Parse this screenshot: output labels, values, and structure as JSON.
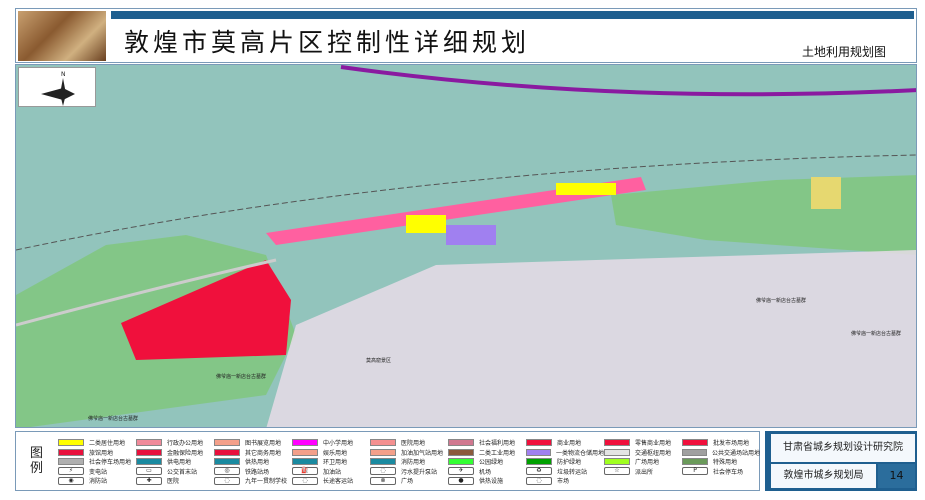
{
  "header": {
    "title": "敦煌市莫高片区控制性详细规划",
    "subtitle": "土地利用规划图"
  },
  "map": {
    "labels": {
      "scenic": "莫高窟景区",
      "tombs1": "佛爷庙一新店台古墓群",
      "tombs2": "佛爷庙一新店台古墓群",
      "tombs3": "佛爷庙一新店台古墓群",
      "tombs4": "佛爷庙一新店台古墓群"
    },
    "north": "N"
  },
  "legend": {
    "title": "图例",
    "items": [
      {
        "label": "二类居住用地",
        "color": "#ffff00"
      },
      {
        "label": "行政办公用地",
        "color": "#f08a9a"
      },
      {
        "label": "图书展览用地",
        "color": "#f4a08a"
      },
      {
        "label": "中小学用地",
        "color": "#ff00ff"
      },
      {
        "label": "医院用地",
        "color": "#f49090"
      },
      {
        "label": "社会福利用地",
        "color": "#d07890"
      },
      {
        "label": "商业用地",
        "color": "#f0103c"
      },
      {
        "label": "零售商业用地",
        "color": "#f0103c"
      },
      {
        "label": "批发市场用地",
        "color": "#f0103c"
      },
      {
        "label": "旅馆用地",
        "color": "#e8103c"
      },
      {
        "label": "金融保险用地",
        "color": "#e8103c"
      },
      {
        "label": "其它商务用地",
        "color": "#e8103c"
      },
      {
        "label": "娱乐用地",
        "color": "#f4a08a"
      },
      {
        "label": "加油加气站用地",
        "color": "#f4a08a"
      },
      {
        "label": "二类工业用地",
        "color": "#8b5a3c"
      },
      {
        "label": "一类物流仓储用地",
        "color": "#a080f0"
      },
      {
        "label": "交通枢纽用地",
        "color": "#e4e4e4"
      },
      {
        "label": "公共交通场站用地",
        "color": "#a0a0a0"
      },
      {
        "label": "社会停车场用地",
        "color": "#b0b0b0"
      },
      {
        "label": "供电用地",
        "color": "#1a8aa0"
      },
      {
        "label": "供热用地",
        "color": "#1a8aa0"
      },
      {
        "label": "环卫用地",
        "color": "#1a8aa0"
      },
      {
        "label": "消防用地",
        "color": "#1a8aa0"
      },
      {
        "label": "公园绿地",
        "color": "#33ff33"
      },
      {
        "label": "防护绿地",
        "color": "#00a000"
      },
      {
        "label": "广场用地",
        "color": "#a0ff20"
      },
      {
        "label": "特殊用地",
        "color": "#6a9a5a"
      }
    ],
    "symbols": [
      {
        "label": "变电站",
        "glyph": "⚡"
      },
      {
        "label": "公交首末站",
        "glyph": "▭"
      },
      {
        "label": "铁路站场",
        "glyph": "◎"
      },
      {
        "label": "加油站",
        "glyph": "⛽"
      },
      {
        "label": "污水提升泵站",
        "glyph": "◌"
      },
      {
        "label": "机场",
        "glyph": "✈"
      },
      {
        "label": "垃圾转运站",
        "glyph": "♻"
      },
      {
        "label": "派出所",
        "glyph": "☆"
      },
      {
        "label": "社会停车场",
        "glyph": "P"
      },
      {
        "label": "消防站",
        "glyph": "◉"
      },
      {
        "label": "医院",
        "glyph": "✚"
      },
      {
        "label": "九年一贯制学校",
        "glyph": "◌"
      },
      {
        "label": "长途客运站",
        "glyph": "◌"
      },
      {
        "label": "广场",
        "glyph": "⊗"
      },
      {
        "label": "供热设施",
        "glyph": "●"
      },
      {
        "label": "市场",
        "glyph": "◌"
      }
    ]
  },
  "credits": {
    "institute": "甘肃省城乡规划设计研究院",
    "bureau": "敦煌市城乡规划局",
    "page": "14"
  }
}
